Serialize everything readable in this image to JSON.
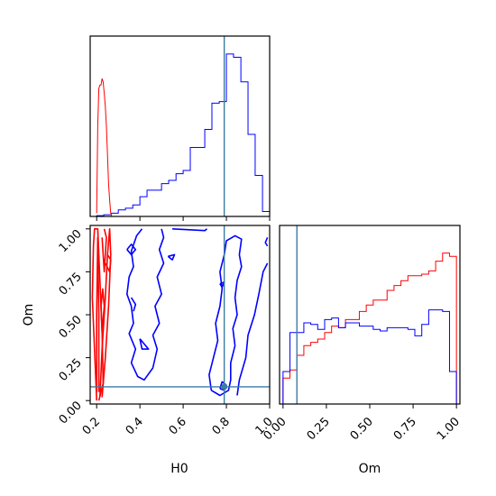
{
  "chart_data": {
    "type": "corner",
    "parameters": [
      "H0",
      "Om"
    ],
    "colors": {
      "red_model": "#ff0000",
      "blue_model": "#0000ff",
      "truth": "#3a7ca5"
    },
    "truth": {
      "H0": 0.79,
      "Om": 0.08
    },
    "axes": {
      "H0": {
        "xlabel": "H0",
        "xlim": [
          0.17,
          1.0
        ],
        "ticks": [
          0.2,
          0.4,
          0.6,
          0.8,
          1.0
        ],
        "tick_labels": [
          "0.2",
          "0.4",
          "0.6",
          "0.8",
          "1.0"
        ]
      },
      "Om": {
        "xlabel": "Om",
        "ylabel": "Om",
        "xlim": [
          -0.02,
          1.02
        ],
        "ylim": [
          -0.02,
          1.02
        ],
        "ticks": [
          0.0,
          0.25,
          0.5,
          0.75,
          1.0
        ],
        "tick_labels": [
          "0.00",
          "0.25",
          "0.50",
          "0.75",
          "1.00"
        ]
      }
    },
    "hist_H0": {
      "ylim": [
        0,
        1.0
      ],
      "series": [
        {
          "name": "",
          "color": "#0000ff",
          "edges": [
            0.2,
            0.233,
            0.267,
            0.3,
            0.333,
            0.367,
            0.4,
            0.433,
            0.467,
            0.5,
            0.533,
            0.567,
            0.6,
            0.633,
            0.667,
            0.7,
            0.733,
            0.767,
            0.8,
            0.833,
            0.867,
            0.9,
            0.933,
            0.967,
            1.0
          ],
          "values": [
            0.005,
            0.01,
            0.02,
            0.04,
            0.05,
            0.07,
            0.12,
            0.16,
            0.16,
            0.2,
            0.22,
            0.26,
            0.28,
            0.42,
            0.42,
            0.53,
            0.69,
            0.7,
            0.99,
            0.97,
            0.82,
            0.5,
            0.25,
            0.03
          ]
        },
        {
          "name": "",
          "color": "#ff0000",
          "x": [
            0.2,
            0.205,
            0.21,
            0.215,
            0.22,
            0.225,
            0.23,
            0.235,
            0.24,
            0.245,
            0.25,
            0.255,
            0.26,
            0.265,
            0.27
          ],
          "values": [
            0.02,
            0.55,
            0.78,
            0.8,
            0.8,
            0.84,
            0.82,
            0.75,
            0.67,
            0.55,
            0.38,
            0.2,
            0.1,
            0.02,
            0.0
          ]
        }
      ]
    },
    "hist_Om": {
      "ylim": [
        0,
        1.0
      ],
      "series": [
        {
          "name": "",
          "color": "#ff0000",
          "edges": [
            0.0,
            0.04,
            0.08,
            0.12,
            0.16,
            0.2,
            0.24,
            0.28,
            0.32,
            0.36,
            0.4,
            0.44,
            0.48,
            0.52,
            0.56,
            0.6,
            0.64,
            0.68,
            0.72,
            0.76,
            0.8,
            0.84,
            0.88,
            0.92,
            0.96,
            1.0
          ],
          "values": [
            0.16,
            0.21,
            0.3,
            0.36,
            0.38,
            0.4,
            0.44,
            0.48,
            0.47,
            0.52,
            0.52,
            0.57,
            0.61,
            0.64,
            0.64,
            0.7,
            0.73,
            0.76,
            0.79,
            0.79,
            0.8,
            0.82,
            0.88,
            0.93,
            0.91
          ]
        },
        {
          "name": "",
          "color": "#0000ff",
          "edges": [
            0.0,
            0.04,
            0.08,
            0.12,
            0.16,
            0.2,
            0.24,
            0.28,
            0.32,
            0.36,
            0.4,
            0.44,
            0.48,
            0.52,
            0.56,
            0.6,
            0.64,
            0.68,
            0.72,
            0.76,
            0.8,
            0.84,
            0.88,
            0.92,
            0.96,
            1.0
          ],
          "values": [
            0.2,
            0.44,
            0.44,
            0.5,
            0.49,
            0.46,
            0.52,
            0.53,
            0.47,
            0.5,
            0.5,
            0.48,
            0.48,
            0.46,
            0.45,
            0.47,
            0.47,
            0.47,
            0.46,
            0.42,
            0.49,
            0.58,
            0.58,
            0.57,
            0.2
          ]
        }
      ]
    },
    "contours_H0_Om": [
      {
        "color": "#0000ff",
        "points": [
          [
            0.41,
            1.0
          ],
          [
            0.385,
            0.96
          ],
          [
            0.36,
            0.87
          ],
          [
            0.37,
            0.78
          ],
          [
            0.35,
            0.72
          ],
          [
            0.34,
            0.62
          ],
          [
            0.36,
            0.55
          ],
          [
            0.37,
            0.45
          ],
          [
            0.35,
            0.39
          ],
          [
            0.38,
            0.3
          ],
          [
            0.36,
            0.22
          ],
          [
            0.39,
            0.14
          ],
          [
            0.42,
            0.12
          ],
          [
            0.46,
            0.19
          ],
          [
            0.48,
            0.3
          ],
          [
            0.46,
            0.38
          ],
          [
            0.49,
            0.45
          ],
          [
            0.47,
            0.55
          ],
          [
            0.5,
            0.62
          ],
          [
            0.48,
            0.72
          ],
          [
            0.51,
            0.8
          ],
          [
            0.49,
            0.88
          ],
          [
            0.51,
            0.95
          ],
          [
            0.5,
            1.0
          ]
        ]
      },
      {
        "color": "#0000ff",
        "points": [
          [
            0.55,
            1.0
          ],
          [
            0.7,
            0.99
          ],
          [
            0.71,
            1.0
          ]
        ]
      },
      {
        "color": "#0000ff",
        "points": [
          [
            0.34,
            0.88
          ],
          [
            0.36,
            0.85
          ],
          [
            0.38,
            0.88
          ],
          [
            0.36,
            0.91
          ],
          [
            0.34,
            0.88
          ]
        ]
      },
      {
        "color": "#0000ff",
        "points": [
          [
            0.53,
            0.84
          ],
          [
            0.55,
            0.82
          ],
          [
            0.56,
            0.85
          ],
          [
            0.53,
            0.84
          ]
        ]
      },
      {
        "color": "#0000ff",
        "points": [
          [
            0.36,
            0.6
          ],
          [
            0.38,
            0.56
          ],
          [
            0.37,
            0.52
          ]
        ]
      },
      {
        "color": "#0000ff",
        "points": [
          [
            0.4,
            0.36
          ],
          [
            0.41,
            0.3
          ],
          [
            0.44,
            0.3
          ],
          [
            0.4,
            0.36
          ]
        ]
      },
      {
        "color": "#0000ff",
        "points": [
          [
            0.73,
            0.06
          ],
          [
            0.72,
            0.15
          ],
          [
            0.74,
            0.25
          ],
          [
            0.76,
            0.35
          ],
          [
            0.75,
            0.45
          ],
          [
            0.77,
            0.55
          ],
          [
            0.78,
            0.65
          ],
          [
            0.77,
            0.75
          ],
          [
            0.79,
            0.85
          ],
          [
            0.8,
            0.93
          ],
          [
            0.84,
            0.96
          ],
          [
            0.87,
            0.94
          ],
          [
            0.86,
            0.85
          ],
          [
            0.87,
            0.78
          ],
          [
            0.85,
            0.7
          ],
          [
            0.84,
            0.6
          ],
          [
            0.85,
            0.5
          ],
          [
            0.83,
            0.42
          ],
          [
            0.84,
            0.32
          ],
          [
            0.82,
            0.22
          ],
          [
            0.82,
            0.12
          ],
          [
            0.81,
            0.06
          ],
          [
            0.77,
            0.03
          ],
          [
            0.73,
            0.06
          ]
        ]
      },
      {
        "color": "#0000ff",
        "points": [
          [
            0.77,
            0.68
          ],
          [
            0.78,
            0.66
          ],
          [
            0.79,
            0.69
          ],
          [
            0.77,
            0.68
          ]
        ]
      },
      {
        "color": "#0000ff",
        "points": [
          [
            0.77,
            0.07
          ],
          [
            0.79,
            0.06
          ],
          [
            0.8,
            0.09
          ],
          [
            0.78,
            0.11
          ],
          [
            0.77,
            0.07
          ]
        ]
      },
      {
        "color": "#0000ff",
        "points": [
          [
            0.85,
            0.03
          ],
          [
            0.86,
            0.12
          ],
          [
            0.89,
            0.25
          ],
          [
            0.9,
            0.38
          ],
          [
            0.93,
            0.5
          ],
          [
            0.95,
            0.62
          ],
          [
            0.97,
            0.75
          ],
          [
            0.99,
            0.8
          ]
        ]
      },
      {
        "color": "#0000ff",
        "points": [
          [
            0.99,
            0.95
          ],
          [
            0.98,
            0.92
          ],
          [
            0.99,
            0.9
          ]
        ]
      },
      {
        "color": "#ff0000",
        "points": [
          [
            0.2,
            0.0
          ],
          [
            0.19,
            0.3
          ],
          [
            0.18,
            0.6
          ],
          [
            0.185,
            0.9
          ],
          [
            0.19,
            1.0
          ],
          [
            0.205,
            1.0
          ],
          [
            0.215,
            0.7
          ],
          [
            0.225,
            0.4
          ],
          [
            0.23,
            0.1
          ],
          [
            0.21,
            0.0
          ]
        ]
      },
      {
        "color": "#ff0000",
        "points": [
          [
            0.215,
            0.02
          ],
          [
            0.225,
            0.3
          ],
          [
            0.24,
            0.6
          ],
          [
            0.25,
            0.85
          ],
          [
            0.26,
            1.0
          ],
          [
            0.265,
            0.85
          ],
          [
            0.255,
            0.55
          ],
          [
            0.24,
            0.25
          ],
          [
            0.225,
            0.02
          ]
        ]
      },
      {
        "color": "#ff0000",
        "points": [
          [
            0.2,
            0.05
          ],
          [
            0.2,
            0.5
          ],
          [
            0.205,
            0.95
          ],
          [
            0.21,
            0.5
          ],
          [
            0.21,
            0.05
          ]
        ]
      },
      {
        "color": "#ff0000",
        "points": [
          [
            0.225,
            0.95
          ],
          [
            0.235,
            0.75
          ],
          [
            0.245,
            0.95
          ],
          [
            0.235,
            1.0
          ]
        ]
      },
      {
        "color": "#ff0000",
        "points": [
          [
            0.22,
            0.55
          ],
          [
            0.225,
            0.4
          ],
          [
            0.235,
            0.55
          ],
          [
            0.228,
            0.65
          ],
          [
            0.22,
            0.55
          ]
        ]
      },
      {
        "color": "#ff0000",
        "points": [
          [
            0.24,
            0.8
          ],
          [
            0.26,
            0.75
          ],
          [
            0.265,
            0.82
          ],
          [
            0.25,
            0.85
          ]
        ]
      }
    ]
  }
}
